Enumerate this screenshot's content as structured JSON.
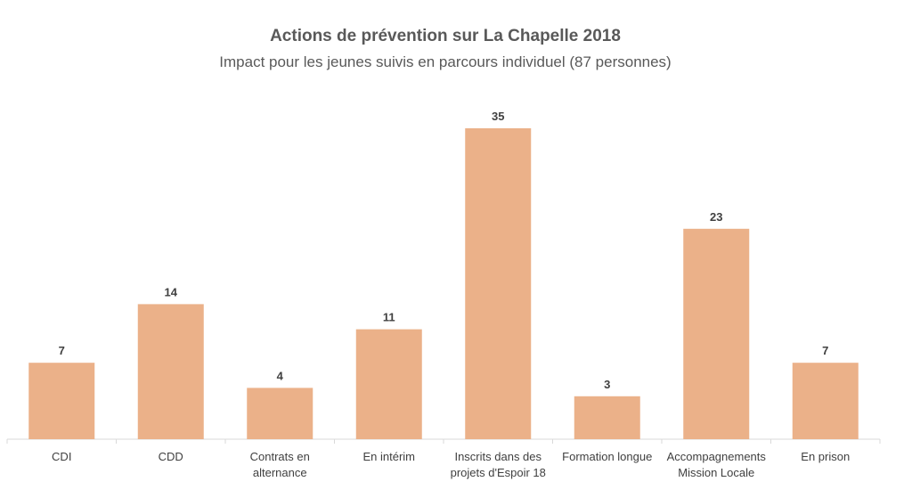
{
  "chart_data": {
    "type": "bar",
    "title": "Actions de prévention sur La Chapelle 2018",
    "subtitle": "Impact pour les jeunes suivis en parcours individuel (87 personnes)",
    "categories": [
      [
        "CDI"
      ],
      [
        "CDD"
      ],
      [
        "Contrats en",
        "alternance"
      ],
      [
        "En intérim"
      ],
      [
        "Inscrits dans des",
        "projets d'Espoir 18"
      ],
      [
        "Formation longue"
      ],
      [
        "Accompagnements",
        "Mission Locale"
      ],
      [
        "En prison"
      ]
    ],
    "values": [
      7,
      14,
      4,
      11,
      35,
      3,
      23,
      7
    ],
    "data_labels": [
      "7",
      "14",
      "4",
      "11",
      "35",
      "3",
      "23",
      "7"
    ],
    "bar_color": "#EBB189",
    "grid": false,
    "legend": "none"
  }
}
